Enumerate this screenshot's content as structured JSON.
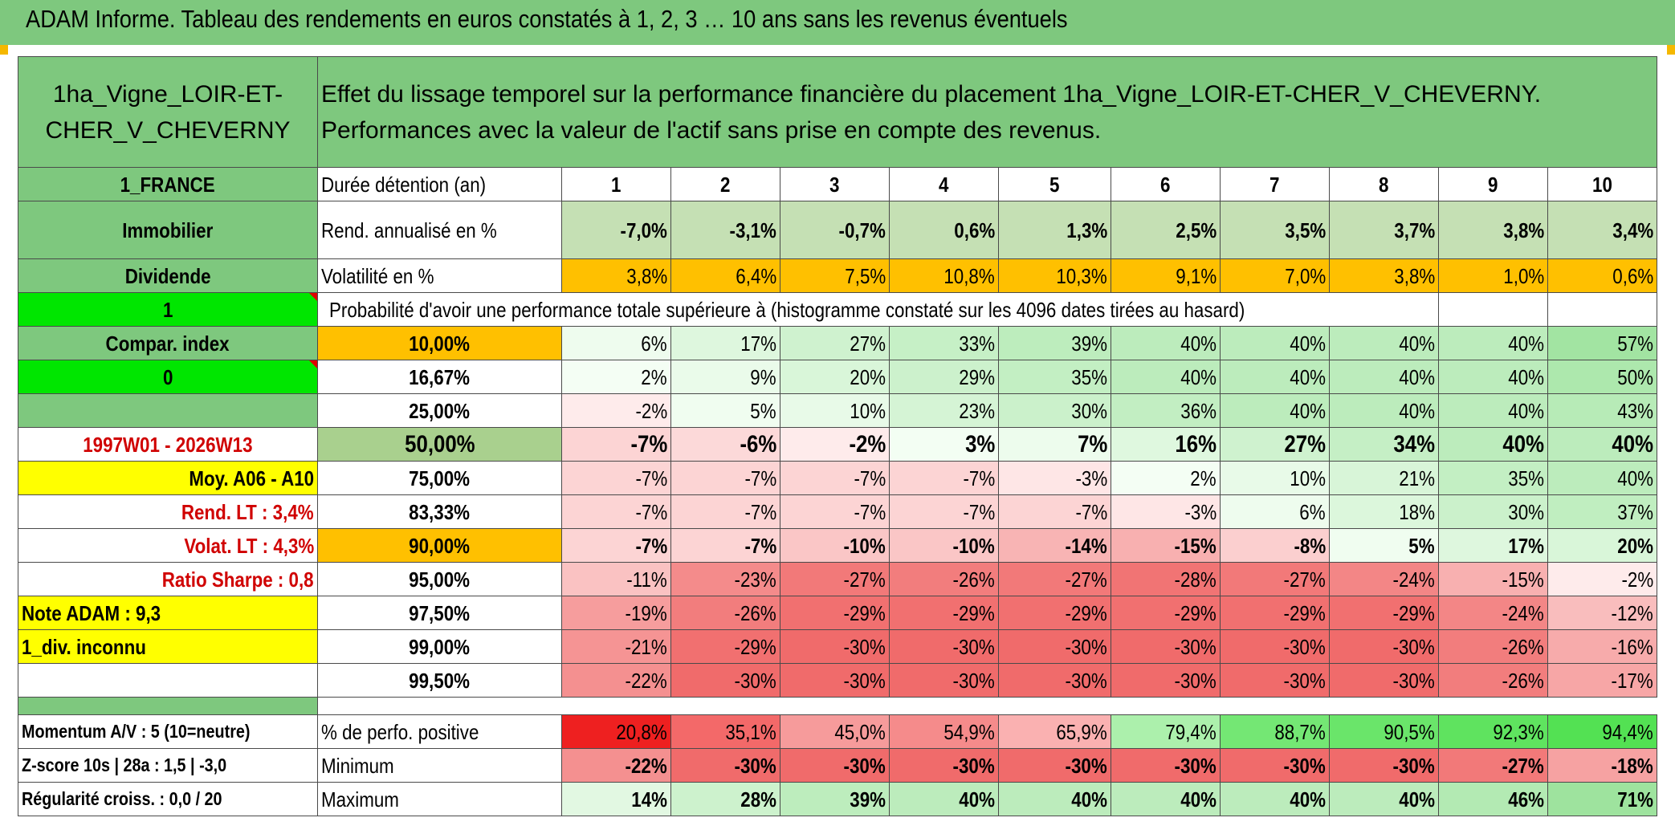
{
  "title": "ADAM Informe. Tableau des rendements en euros constatés à 1, 2, 3 … 10 ans sans les revenus éventuels",
  "asset_name": "1ha_Vigne_LOIR-ET-CHER_V_CHEVERNY",
  "description": "Effet du lissage temporel sur la performance financière du placement 1ha_Vigne_LOIR-ET-CHER_V_CHEVERNY. Performances avec la valeur de l'actif sans prise en compte des revenus.",
  "left": {
    "country": "1_FRANCE",
    "category": "Immobilier",
    "dividend_label": "Dividende",
    "dividend_value": "1",
    "compar_index_label": "Compar. index",
    "compar_index_value": "0",
    "period": "1997W01 - 2026W13",
    "moy": "Moy. A06 - A10",
    "rend_lt": "Rend. LT :   3,4%",
    "volat_lt": "Volat. LT :   4,3%",
    "sharpe": "Ratio Sharpe :    0,8",
    "note": "Note ADAM : 9,3",
    "div": "1_div. inconnu",
    "momentum": "Momentum A/V : 5 (10=neutre)",
    "zscore": "Z-score 10s | 28a : 1,5 | -3,0",
    "regularite": "Régularité croiss. : 0,0 / 20"
  },
  "header": {
    "duration_label": "Durée détention (an)",
    "years": [
      "1",
      "2",
      "3",
      "4",
      "5",
      "6",
      "7",
      "8",
      "9",
      "10"
    ]
  },
  "rend": {
    "label": "Rend. annualisé en %",
    "values": [
      "-7,0%",
      "-3,1%",
      "-0,7%",
      "0,6%",
      "1,3%",
      "2,5%",
      "3,5%",
      "3,7%",
      "3,8%",
      "3,4%"
    ]
  },
  "volat": {
    "label": "Volatilité en %",
    "values": [
      "3,8%",
      "6,4%",
      "7,5%",
      "10,8%",
      "10,3%",
      "9,1%",
      "7,0%",
      "3,8%",
      "1,0%",
      "0,6%"
    ]
  },
  "prob_label": "Probabilité d'avoir une performance totale supérieure à (histogramme constaté sur les 4096 dates tirées au hasard)",
  "quantiles": [
    {
      "label": "10,00%",
      "values": [
        "6%",
        "17%",
        "27%",
        "33%",
        "39%",
        "40%",
        "40%",
        "40%",
        "40%",
        "57%"
      ]
    },
    {
      "label": "16,67%",
      "values": [
        "2%",
        "9%",
        "20%",
        "29%",
        "35%",
        "40%",
        "40%",
        "40%",
        "40%",
        "50%"
      ]
    },
    {
      "label": "25,00%",
      "values": [
        "-2%",
        "5%",
        "10%",
        "23%",
        "30%",
        "36%",
        "40%",
        "40%",
        "40%",
        "43%"
      ]
    },
    {
      "label": "50,00%",
      "values": [
        "-7%",
        "-6%",
        "-2%",
        "3%",
        "7%",
        "16%",
        "27%",
        "34%",
        "40%",
        "40%"
      ]
    },
    {
      "label": "75,00%",
      "values": [
        "-7%",
        "-7%",
        "-7%",
        "-7%",
        "-3%",
        "2%",
        "10%",
        "21%",
        "35%",
        "40%"
      ]
    },
    {
      "label": "83,33%",
      "values": [
        "-7%",
        "-7%",
        "-7%",
        "-7%",
        "-7%",
        "-3%",
        "6%",
        "18%",
        "30%",
        "37%"
      ]
    },
    {
      "label": "90,00%",
      "values": [
        "-7%",
        "-7%",
        "-10%",
        "-10%",
        "-14%",
        "-15%",
        "-8%",
        "5%",
        "17%",
        "20%"
      ]
    },
    {
      "label": "95,00%",
      "values": [
        "-11%",
        "-23%",
        "-27%",
        "-26%",
        "-27%",
        "-28%",
        "-27%",
        "-24%",
        "-15%",
        "-2%"
      ]
    },
    {
      "label": "97,50%",
      "values": [
        "-19%",
        "-26%",
        "-29%",
        "-29%",
        "-29%",
        "-29%",
        "-29%",
        "-29%",
        "-24%",
        "-12%"
      ]
    },
    {
      "label": "99,00%",
      "values": [
        "-21%",
        "-29%",
        "-30%",
        "-30%",
        "-30%",
        "-30%",
        "-30%",
        "-30%",
        "-26%",
        "-16%"
      ]
    },
    {
      "label": "99,50%",
      "values": [
        "-22%",
        "-30%",
        "-30%",
        "-30%",
        "-30%",
        "-30%",
        "-30%",
        "-30%",
        "-26%",
        "-17%"
      ]
    }
  ],
  "perf_pos": {
    "label": "% de perfo. positive",
    "values": [
      "20,8%",
      "35,1%",
      "45,0%",
      "54,9%",
      "65,9%",
      "79,4%",
      "88,7%",
      "90,5%",
      "92,3%",
      "94,4%"
    ]
  },
  "minimum": {
    "label": "Minimum",
    "values": [
      "-22%",
      "-30%",
      "-30%",
      "-30%",
      "-30%",
      "-30%",
      "-30%",
      "-30%",
      "-27%",
      "-18%"
    ]
  },
  "maximum": {
    "label": "Maximum",
    "values": [
      "14%",
      "28%",
      "39%",
      "40%",
      "40%",
      "40%",
      "40%",
      "40%",
      "46%",
      "71%"
    ]
  },
  "colors": {
    "title_green": "#7ec87e",
    "bright_green": "#00e600",
    "yellow": "#ffff00",
    "orange": "#ffc000",
    "red_text": "#d00000"
  }
}
